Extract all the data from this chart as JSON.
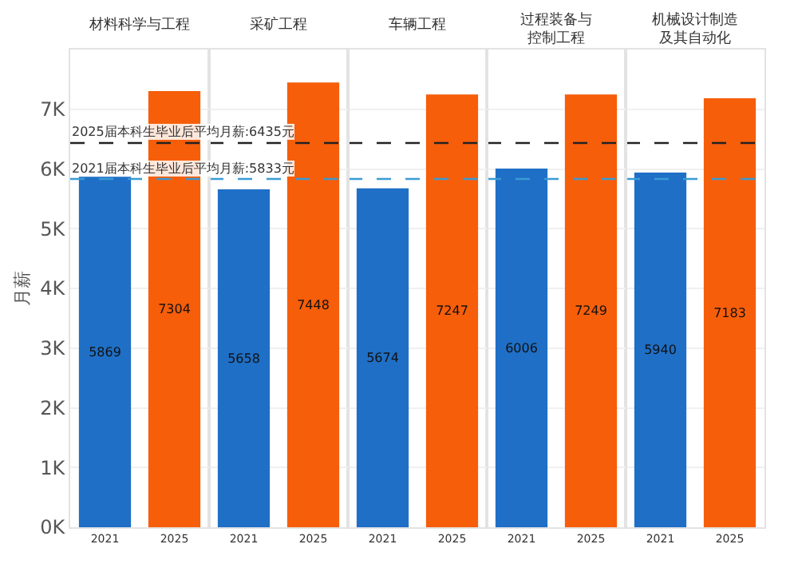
{
  "chart_data": [
    {
      "type": "bar",
      "title": "材料科学与工程",
      "ylabel": "月薪",
      "categories": [
        "2021",
        "2025"
      ],
      "values": [
        5869,
        7304
      ],
      "colors": [
        "#1f6fc6",
        "#f65e0a"
      ],
      "data_labels": true,
      "ylim": [
        0,
        8000
      ],
      "yticks": [
        {
          "value": 0,
          "label": "0K"
        },
        {
          "value": 1000,
          "label": "1K"
        },
        {
          "value": 2000,
          "label": "2K"
        },
        {
          "value": 3000,
          "label": "3K"
        },
        {
          "value": 4000,
          "label": "4K"
        },
        {
          "value": 5000,
          "label": "5K"
        },
        {
          "value": 6000,
          "label": "6K"
        },
        {
          "value": 7000,
          "label": "7K"
        }
      ],
      "grid": "y",
      "ref_lines": [
        {
          "axis": "y",
          "value": 6435,
          "label": "2025届本科生毕业后平均月薪:6435元",
          "color": "#222222",
          "line_style": "dashed"
        },
        {
          "axis": "y",
          "value": 5833,
          "label": "2021届本科生毕业后平均月薪:5833元",
          "color": "#3a9bd5",
          "line_style": "dashed"
        }
      ]
    },
    {
      "type": "bar",
      "title": "采矿工程",
      "categories": [
        "2021",
        "2025"
      ],
      "values": [
        5658,
        7448
      ],
      "colors": [
        "#1f6fc6",
        "#f65e0a"
      ],
      "data_labels": true,
      "ylim": [
        0,
        8000
      ],
      "yticks": [
        {
          "value": 0,
          "label": null
        },
        {
          "value": 1000,
          "label": null
        },
        {
          "value": 2000,
          "label": null
        },
        {
          "value": 3000,
          "label": null
        },
        {
          "value": 4000,
          "label": null
        },
        {
          "value": 5000,
          "label": null
        },
        {
          "value": 6000,
          "label": null
        },
        {
          "value": 7000,
          "label": null
        }
      ],
      "grid": "y",
      "tick_labels": "x",
      "ref_lines": [
        {
          "axis": "y",
          "value": 6435,
          "color": "#222222",
          "line_style": "dashed"
        },
        {
          "axis": "y",
          "value": 5833,
          "color": "#3a9bd5",
          "line_style": "dashed"
        }
      ]
    },
    {
      "type": "bar",
      "title": "车辆工程",
      "categories": [
        "2021",
        "2025"
      ],
      "values": [
        5674,
        7247
      ],
      "colors": [
        "#1f6fc6",
        "#f65e0a"
      ],
      "data_labels": true,
      "ylim": [
        0,
        8000
      ],
      "yticks": [
        {
          "value": 0,
          "label": null
        },
        {
          "value": 1000,
          "label": null
        },
        {
          "value": 2000,
          "label": null
        },
        {
          "value": 3000,
          "label": null
        },
        {
          "value": 4000,
          "label": null
        },
        {
          "value": 5000,
          "label": null
        },
        {
          "value": 6000,
          "label": null
        },
        {
          "value": 7000,
          "label": null
        }
      ],
      "grid": "y",
      "tick_labels": "x",
      "ref_lines": [
        {
          "axis": "y",
          "value": 6435,
          "color": "#222222",
          "line_style": "dashed"
        },
        {
          "axis": "y",
          "value": 5833,
          "color": "#3a9bd5",
          "line_style": "dashed"
        }
      ]
    },
    {
      "type": "bar",
      "title": "过程装备与控制工程",
      "categories": [
        "2021",
        "2025"
      ],
      "values": [
        6006,
        7249
      ],
      "colors": [
        "#1f6fc6",
        "#f65e0a"
      ],
      "data_labels": true,
      "ylim": [
        0,
        8000
      ],
      "yticks": [
        {
          "value": 0,
          "label": null
        },
        {
          "value": 1000,
          "label": null
        },
        {
          "value": 2000,
          "label": null
        },
        {
          "value": 3000,
          "label": null
        },
        {
          "value": 4000,
          "label": null
        },
        {
          "value": 5000,
          "label": null
        },
        {
          "value": 6000,
          "label": null
        },
        {
          "value": 7000,
          "label": null
        }
      ],
      "grid": "y",
      "tick_labels": "x",
      "ref_lines": [
        {
          "axis": "y",
          "value": 6435,
          "color": "#222222",
          "line_style": "dashed"
        },
        {
          "axis": "y",
          "value": 5833,
          "color": "#3a9bd5",
          "line_style": "dashed"
        }
      ]
    },
    {
      "type": "bar",
      "title": "机械设计制造及其自动化",
      "categories": [
        "2021",
        "2025"
      ],
      "values": [
        5940,
        7183
      ],
      "colors": [
        "#1f6fc6",
        "#f65e0a"
      ],
      "data_labels": true,
      "ylim": [
        0,
        8000
      ],
      "yticks": [
        {
          "value": 0,
          "label": null
        },
        {
          "value": 1000,
          "label": null
        },
        {
          "value": 2000,
          "label": null
        },
        {
          "value": 3000,
          "label": null
        },
        {
          "value": 4000,
          "label": null
        },
        {
          "value": 5000,
          "label": null
        },
        {
          "value": 6000,
          "label": null
        },
        {
          "value": 7000,
          "label": null
        }
      ],
      "grid": "y",
      "tick_labels": "x",
      "ref_lines": [
        {
          "axis": "y",
          "value": 6435,
          "color": "#222222",
          "line_style": "dashed"
        },
        {
          "axis": "y",
          "value": 5833,
          "color": "#3a9bd5",
          "line_style": "dashed"
        }
      ]
    }
  ]
}
